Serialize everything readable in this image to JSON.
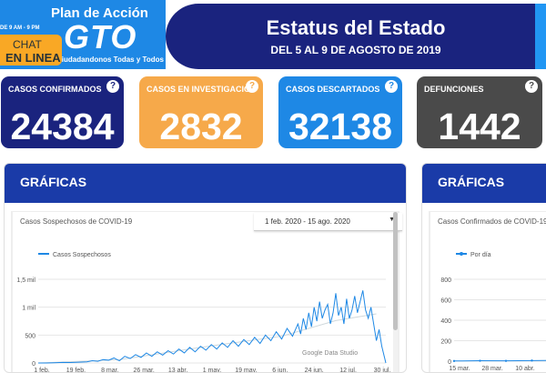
{
  "header": {
    "plan_text": "Plan de Acción",
    "logo_text": "GTO",
    "tagline": "Ciudadandonos Todas y Todos",
    "hours_text": "DE 9 AM - 9 PM",
    "chat_line1": "CHAT",
    "chat_line2": "EN LINEA",
    "status_title": "Estatus del Estado",
    "status_subtitle": "DEL 5 AL 9 DE AGOSTO DE 2019"
  },
  "stats": [
    {
      "label": "CASOS CONFIRMADOS",
      "value": "24384",
      "help": "?"
    },
    {
      "label": "CASOS EN INVESTIGACIÓN",
      "value": "2832",
      "help": "?"
    },
    {
      "label": "CASOS DESCARTADOS",
      "value": "32138",
      "help": "?"
    },
    {
      "label": "DEFUNCIONES",
      "value": "1442",
      "help": "?"
    }
  ],
  "panels": [
    {
      "title": "GRÁFICAS",
      "caption": "Casos Sospechosos de COVID-19",
      "date_range": "1 feb. 2020 - 15 ago. 2020",
      "dropdown_arrow": "▼",
      "watermark": "Google Data Studio"
    },
    {
      "title": "GRÁFICAS",
      "caption": "Casos Confirmados de COVID-19"
    }
  ],
  "chart_data": [
    {
      "type": "line",
      "title": "",
      "series": [
        {
          "name": "Casos Sospechosos",
          "color": "#1e88e5"
        }
      ],
      "x_ticks": [
        "1 feb.",
        "19 feb.",
        "8 mar.",
        "26 mar.",
        "13 abr.",
        "1 may.",
        "19 may.",
        "6 jun.",
        "24 jun.",
        "12 jul.",
        "30 jul."
      ],
      "y_ticks": [
        "0",
        "500",
        "1 mil",
        "1,5 mil"
      ],
      "ylim": [
        0,
        1500
      ],
      "points": [
        [
          0,
          0
        ],
        [
          6,
          0
        ],
        [
          12,
          5
        ],
        [
          18,
          10
        ],
        [
          24,
          8
        ],
        [
          30,
          15
        ],
        [
          36,
          20
        ],
        [
          40,
          40
        ],
        [
          44,
          30
        ],
        [
          48,
          60
        ],
        [
          52,
          50
        ],
        [
          56,
          90
        ],
        [
          60,
          40
        ],
        [
          64,
          120
        ],
        [
          68,
          80
        ],
        [
          72,
          150
        ],
        [
          76,
          100
        ],
        [
          80,
          180
        ],
        [
          84,
          120
        ],
        [
          88,
          200
        ],
        [
          92,
          140
        ],
        [
          96,
          220
        ],
        [
          100,
          160
        ],
        [
          104,
          250
        ],
        [
          108,
          180
        ],
        [
          112,
          280
        ],
        [
          116,
          200
        ],
        [
          120,
          300
        ],
        [
          124,
          230
        ],
        [
          128,
          330
        ],
        [
          132,
          250
        ],
        [
          136,
          360
        ],
        [
          140,
          280
        ],
        [
          144,
          400
        ],
        [
          148,
          300
        ],
        [
          152,
          420
        ],
        [
          156,
          330
        ],
        [
          160,
          460
        ],
        [
          164,
          350
        ],
        [
          168,
          500
        ],
        [
          172,
          400
        ],
        [
          176,
          560
        ],
        [
          180,
          430
        ],
        [
          184,
          620
        ],
        [
          188,
          480
        ],
        [
          192,
          700
        ],
        [
          194,
          520
        ],
        [
          196,
          800
        ],
        [
          198,
          600
        ],
        [
          200,
          900
        ],
        [
          202,
          650
        ],
        [
          204,
          1000
        ],
        [
          206,
          750
        ],
        [
          208,
          1100
        ],
        [
          210,
          800
        ],
        [
          212,
          950
        ],
        [
          214,
          1050
        ],
        [
          216,
          700
        ],
        [
          218,
          900
        ],
        [
          220,
          1250
        ],
        [
          222,
          850
        ],
        [
          224,
          1000
        ],
        [
          226,
          700
        ],
        [
          228,
          1150
        ],
        [
          230,
          800
        ],
        [
          232,
          950
        ],
        [
          234,
          1200
        ],
        [
          236,
          900
        ],
        [
          238,
          1100
        ],
        [
          240,
          1300
        ],
        [
          242,
          950
        ],
        [
          244,
          800
        ],
        [
          246,
          1000
        ],
        [
          248,
          700
        ],
        [
          250,
          400
        ],
        [
          252,
          600
        ],
        [
          254,
          300
        ],
        [
          256,
          100
        ],
        [
          257,
          0
        ]
      ],
      "trend": [
        [
          0,
          0
        ],
        [
          60,
          60
        ],
        [
          120,
          280
        ],
        [
          180,
          480
        ],
        [
          220,
          760
        ],
        [
          250,
          880
        ]
      ]
    },
    {
      "type": "line",
      "title": "",
      "series": [
        {
          "name": "Por día",
          "color": "#1e88e5"
        }
      ],
      "x_ticks": [
        "15 mar.",
        "28 mar.",
        "10 abr.",
        "23"
      ],
      "y_ticks": [
        "0",
        "200",
        "400",
        "600",
        "800"
      ],
      "ylim": [
        0,
        800
      ],
      "points": [
        [
          0,
          2
        ],
        [
          30,
          4
        ],
        [
          60,
          3
        ],
        [
          90,
          6
        ],
        [
          120,
          8
        ]
      ]
    }
  ],
  "colors": {
    "navy": "#1a237e",
    "orange": "#f6a94a",
    "blue": "#1e88e5",
    "gray": "#4a4a4a",
    "panel_header": "#1a3ba8"
  }
}
